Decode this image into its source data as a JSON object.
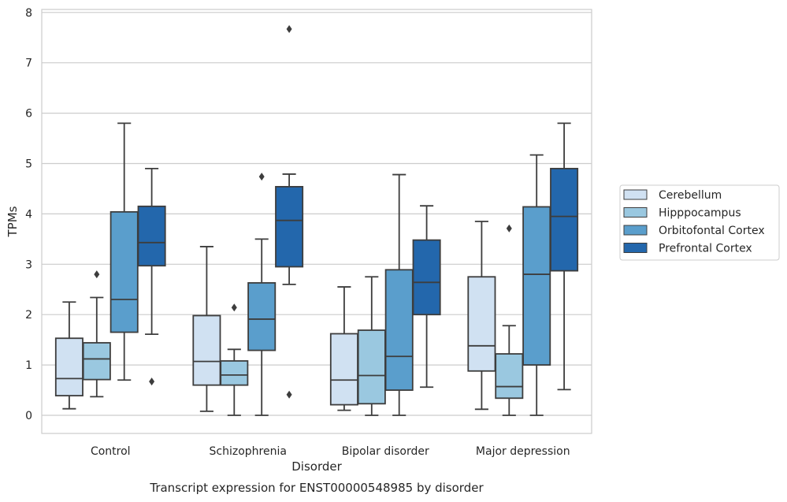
{
  "chart_data": {
    "type": "box",
    "xlabel": "Disorder",
    "ylabel": "TPMs",
    "caption": "Transcript expression for ENST00000548985 by disorder",
    "ylim": [
      -0.38,
      8.07
    ],
    "yticks": [
      "0",
      "1",
      "2",
      "3",
      "4",
      "5",
      "6",
      "7",
      "8"
    ],
    "grid": true,
    "legend_position": "right",
    "categories": [
      "Control",
      "Schizophrenia",
      "Bipolar disorder",
      "Major depression"
    ],
    "series": [
      {
        "name": "Cerebellum",
        "color": "#d0e1f2",
        "boxes": [
          {
            "whislo": 0.13,
            "q1": 0.39,
            "med": 0.73,
            "q3": 1.53,
            "whishi": 2.25,
            "fliers": []
          },
          {
            "whislo": 0.08,
            "q1": 0.6,
            "med": 1.07,
            "q3": 1.98,
            "whishi": 3.35,
            "fliers": []
          },
          {
            "whislo": 0.1,
            "q1": 0.21,
            "med": 0.7,
            "q3": 1.62,
            "whishi": 2.55,
            "fliers": []
          },
          {
            "whislo": 0.12,
            "q1": 0.88,
            "med": 1.38,
            "q3": 2.75,
            "whishi": 3.85,
            "fliers": []
          }
        ]
      },
      {
        "name": "Hipppocampus",
        "color": "#9ac8e0",
        "boxes": [
          {
            "whislo": 0.37,
            "q1": 0.71,
            "med": 1.12,
            "q3": 1.44,
            "whishi": 2.34,
            "fliers": [
              2.8
            ]
          },
          {
            "whislo": 0.0,
            "q1": 0.6,
            "med": 0.8,
            "q3": 1.08,
            "whishi": 1.31,
            "fliers": [
              2.14
            ]
          },
          {
            "whislo": 0.0,
            "q1": 0.23,
            "med": 0.79,
            "q3": 1.69,
            "whishi": 2.75,
            "fliers": []
          },
          {
            "whislo": 0.0,
            "q1": 0.34,
            "med": 0.57,
            "q3": 1.22,
            "whishi": 1.78,
            "fliers": [
              3.71
            ]
          }
        ]
      },
      {
        "name": "Orbitofontal Cortex",
        "color": "#5a9ecc",
        "boxes": [
          {
            "whislo": 0.7,
            "q1": 1.65,
            "med": 2.3,
            "q3": 4.04,
            "whishi": 5.8,
            "fliers": []
          },
          {
            "whislo": 0.0,
            "q1": 1.29,
            "med": 1.91,
            "q3": 2.63,
            "whishi": 3.5,
            "fliers": [
              4.74
            ]
          },
          {
            "whislo": 0.0,
            "q1": 0.5,
            "med": 1.17,
            "q3": 2.89,
            "whishi": 4.78,
            "fliers": []
          },
          {
            "whislo": 0.0,
            "q1": 1.0,
            "med": 2.8,
            "q3": 4.14,
            "whishi": 5.17,
            "fliers": []
          }
        ]
      },
      {
        "name": "Prefrontal Cortex",
        "color": "#2367ac",
        "boxes": [
          {
            "whislo": 1.61,
            "q1": 2.97,
            "med": 3.43,
            "q3": 4.15,
            "whishi": 4.9,
            "fliers": [
              0.67
            ]
          },
          {
            "whislo": 2.6,
            "q1": 2.95,
            "med": 3.87,
            "q3": 4.54,
            "whishi": 4.79,
            "fliers": [
              0.41,
              7.67
            ]
          },
          {
            "whislo": 0.56,
            "q1": 2.0,
            "med": 2.64,
            "q3": 3.48,
            "whishi": 4.16,
            "fliers": []
          },
          {
            "whislo": 0.51,
            "q1": 2.87,
            "med": 3.95,
            "q3": 4.9,
            "whishi": 5.8,
            "fliers": []
          }
        ]
      }
    ]
  }
}
